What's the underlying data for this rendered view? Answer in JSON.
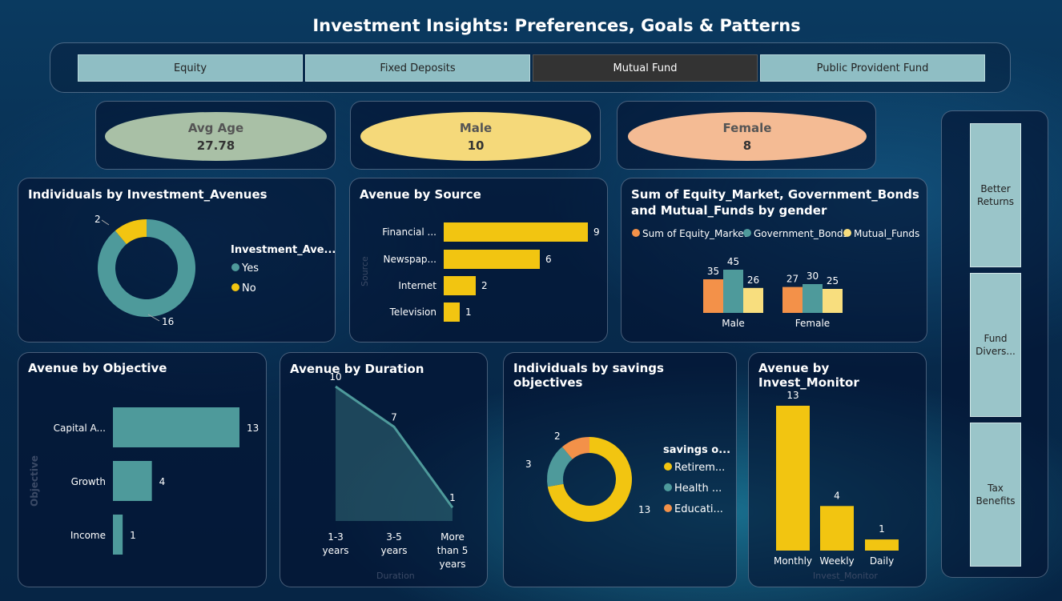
{
  "title": "Investment Insights: Preferences, Goals & Patterns",
  "slicer": [
    "Equity",
    "Fixed Deposits",
    "Mutual Fund",
    "Public Provident Fund"
  ],
  "slicer_selected": "Mutual Fund",
  "kpis": {
    "avg_age": {
      "label": "Avg Age",
      "value": "27.78"
    },
    "male": {
      "label": "Male",
      "value": "10"
    },
    "female": {
      "label": "Female",
      "value": "8"
    }
  },
  "side_buttons": [
    "Better Returns",
    "Fund Divers...",
    "Tax Benefits"
  ],
  "colors": {
    "teal": "#4e9a9b",
    "yellow": "#f2c511",
    "orange": "#f39149",
    "cream": "#f8de7e"
  },
  "panels": {
    "avenues": {
      "title": "Individuals by Investment_Avenues",
      "legend_title": "Investment_Ave...",
      "legend": [
        "Yes",
        "No"
      ],
      "labels": [
        "2",
        "16"
      ]
    },
    "source": {
      "title": "Avenue by Source",
      "axis_label": "Source"
    },
    "gender": {
      "title_line1": "Sum of Equity_Market, Government_Bonds",
      "title_line2": "and Mutual_Funds by gender",
      "legend": [
        "Sum of Equity_Market",
        "Government_Bonds",
        "Mutual_Funds"
      ]
    },
    "objective": {
      "title": "Avenue by Objective",
      "axis_label": "Objective"
    },
    "duration": {
      "title": "Avenue by Duration",
      "axis_label": "Duration"
    },
    "savings": {
      "title": "Individuals by savings objectives",
      "legend_title": "savings o...",
      "legend": [
        "Retirem...",
        "Health ...",
        "Educati..."
      ]
    },
    "monitor": {
      "title": "Avenue by Invest_Monitor",
      "axis_label": "Invest_Monitor"
    }
  },
  "chart_data": [
    {
      "type": "pie",
      "name": "Individuals by Investment_Avenues",
      "categories": [
        "Yes",
        "No"
      ],
      "values": [
        16,
        2
      ]
    },
    {
      "type": "bar",
      "name": "Avenue by Source",
      "categories": [
        "Financial ...",
        "Newspap...",
        "Internet",
        "Television"
      ],
      "values": [
        9,
        6,
        2,
        1
      ]
    },
    {
      "type": "bar",
      "name": "Sum of Equity_Market, Government_Bonds and Mutual_Funds by gender",
      "categories": [
        "Male",
        "Female"
      ],
      "series": [
        {
          "name": "Sum of Equity_Market",
          "values": [
            35,
            27
          ]
        },
        {
          "name": "Government_Bonds",
          "values": [
            45,
            30
          ]
        },
        {
          "name": "Mutual_Funds",
          "values": [
            26,
            25
          ]
        }
      ]
    },
    {
      "type": "bar",
      "name": "Avenue by Objective",
      "categories": [
        "Capital A...",
        "Growth",
        "Income"
      ],
      "values": [
        13,
        4,
        1
      ]
    },
    {
      "type": "area",
      "name": "Avenue by Duration",
      "categories": [
        "1-3 years",
        "3-5 years",
        "More than 5 years"
      ],
      "values": [
        10,
        7,
        1
      ]
    },
    {
      "type": "pie",
      "name": "Individuals by savings objectives",
      "categories": [
        "Retirem...",
        "Health ...",
        "Educati..."
      ],
      "values": [
        13,
        3,
        2
      ]
    },
    {
      "type": "bar",
      "name": "Avenue by Invest_Monitor",
      "categories": [
        "Monthly",
        "Weekly",
        "Daily"
      ],
      "values": [
        13,
        4,
        1
      ]
    }
  ]
}
